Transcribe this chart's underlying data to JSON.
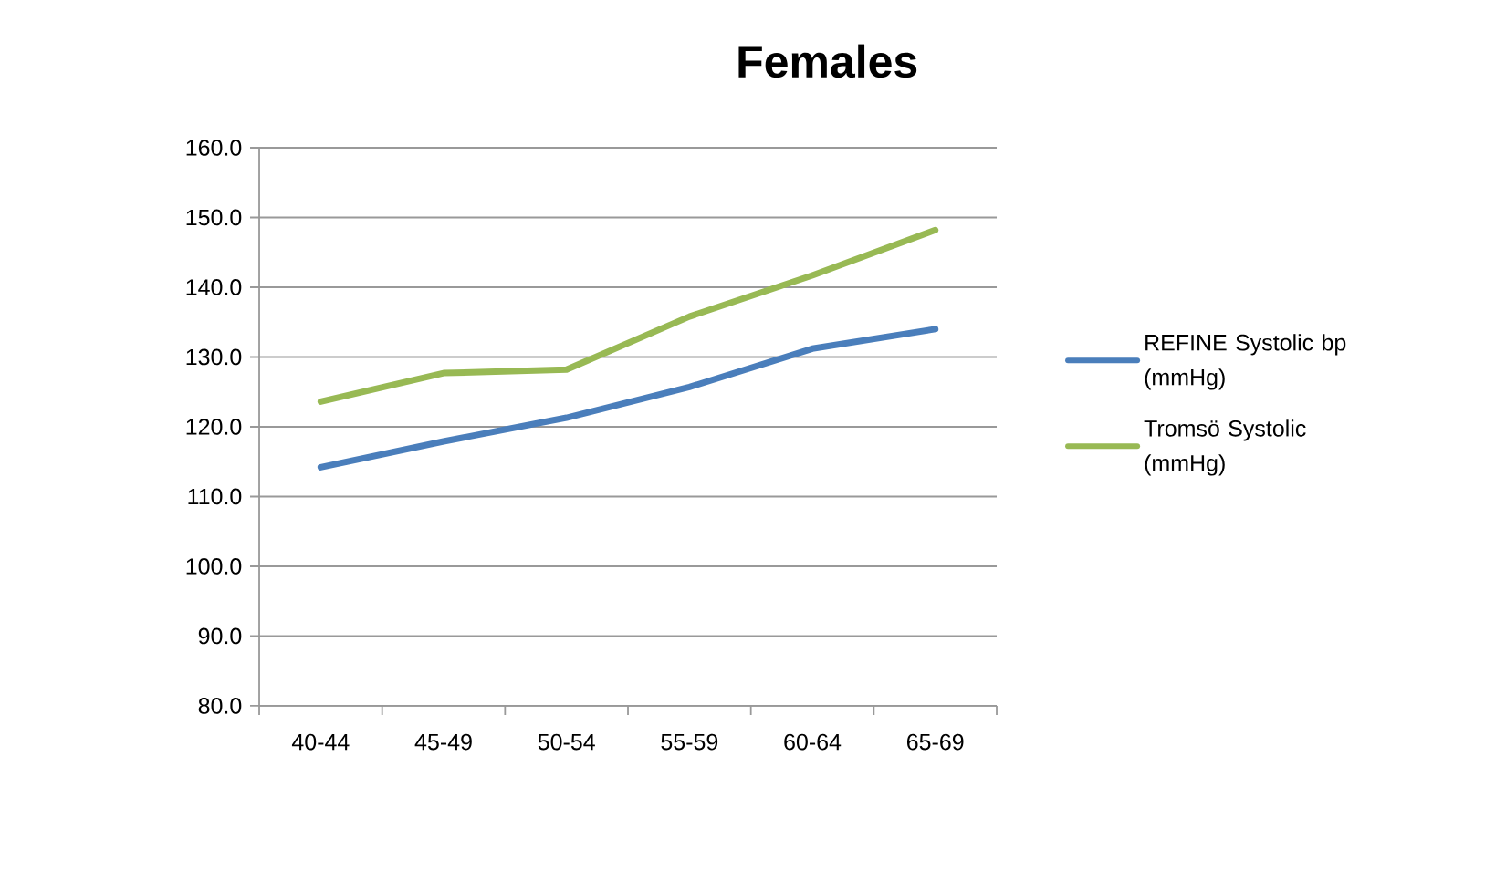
{
  "chart_data": {
    "type": "line",
    "title": "Females",
    "categories": [
      "40-44",
      "45-49",
      "50-54",
      "55-59",
      "60-64",
      "65-69"
    ],
    "series": [
      {
        "name": "REFINE Systolic bp (mmHg)",
        "color": "#4a7ebb",
        "values": [
          114.2,
          117.9,
          121.3,
          125.7,
          131.2,
          134.0
        ]
      },
      {
        "name": "Tromsö Systolic (mmHg)",
        "color": "#98b954",
        "values": [
          123.6,
          127.7,
          128.2,
          135.8,
          141.7,
          148.2
        ]
      }
    ],
    "ylim": [
      80,
      160
    ],
    "yticks": [
      {
        "value": 80,
        "label": "80.0"
      },
      {
        "value": 90,
        "label": "90.0"
      },
      {
        "value": 100,
        "label": "100.0"
      },
      {
        "value": 110,
        "label": "110.0"
      },
      {
        "value": 120,
        "label": "120.0"
      },
      {
        "value": 130,
        "label": "130.0"
      },
      {
        "value": 140,
        "label": "140.0"
      },
      {
        "value": 150,
        "label": "150.0"
      },
      {
        "value": 160,
        "label": "160.0"
      }
    ],
    "grid": "y",
    "legend": "right",
    "marker": "none",
    "line_style": "solid"
  }
}
